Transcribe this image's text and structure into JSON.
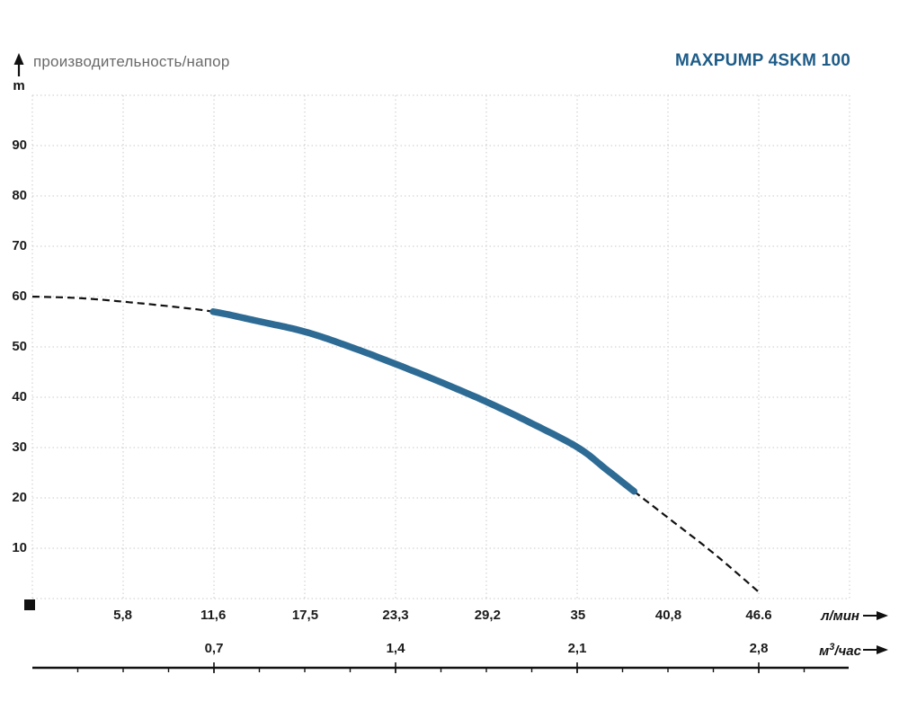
{
  "header": {
    "label": "производительность/напор",
    "y_unit": "m"
  },
  "title": {
    "text": "MAXPUMP 4SKM 100",
    "color": "#1e5c88"
  },
  "axes": {
    "flow": {
      "unit": "л/мин"
    },
    "m3": {
      "unit_prefix": "м",
      "unit_sup": "3",
      "unit_suffix": "/час"
    }
  },
  "chart_data": {
    "type": "line",
    "title": "MAXPUMP 4SKM 100",
    "subtitle": "производительность/напор",
    "ylabel": "m",
    "ylim": [
      0,
      100
    ],
    "y_grid_step": 10,
    "y_ticks": [
      10,
      20,
      30,
      40,
      50,
      60,
      70,
      80,
      90
    ],
    "x_axis_lmin": {
      "unit": "л/мин",
      "range": [
        0,
        52.4
      ],
      "grid_step": 5.825,
      "ticks": [
        {
          "value": 5.8,
          "label": "5,8"
        },
        {
          "value": 11.6,
          "label": "11,6"
        },
        {
          "value": 17.5,
          "label": "17,5"
        },
        {
          "value": 23.3,
          "label": "23,3"
        },
        {
          "value": 29.2,
          "label": "29,2"
        },
        {
          "value": 35,
          "label": "35"
        },
        {
          "value": 40.8,
          "label": "40,8"
        },
        {
          "value": 46.6,
          "label": "46.6"
        }
      ]
    },
    "x_axis_m3h": {
      "unit": "м3/час",
      "range": [
        0,
        3.15
      ],
      "minor_tick_step": 0.175,
      "ticks": [
        {
          "value": 0.7,
          "label": "0,7"
        },
        {
          "value": 1.4,
          "label": "1,4"
        },
        {
          "value": 2.1,
          "label": "2,1"
        },
        {
          "value": 2.8,
          "label": "2,8"
        }
      ]
    },
    "grid": {
      "visible": true,
      "style": "dotted",
      "color": "#c9c9c9"
    },
    "series": [
      {
        "name": "head-curve",
        "solid_color": "#2e6b94",
        "dashed_color": "#111111",
        "solid_range_lmin": [
          11.6,
          38.6
        ],
        "points_q_lmin_h_m": [
          [
            0,
            60
          ],
          [
            3,
            59.7
          ],
          [
            5.8,
            59
          ],
          [
            8.7,
            58.1
          ],
          [
            11.6,
            57
          ],
          [
            14.5,
            55.1
          ],
          [
            17.5,
            53
          ],
          [
            20.4,
            50
          ],
          [
            23.3,
            46.6
          ],
          [
            26.2,
            43
          ],
          [
            29.2,
            39
          ],
          [
            32.1,
            34.7
          ],
          [
            35,
            30
          ],
          [
            36.8,
            25.7
          ],
          [
            38.6,
            21.3
          ],
          [
            40.8,
            16
          ],
          [
            43.7,
            9
          ],
          [
            46.6,
            1.3
          ]
        ]
      }
    ]
  }
}
